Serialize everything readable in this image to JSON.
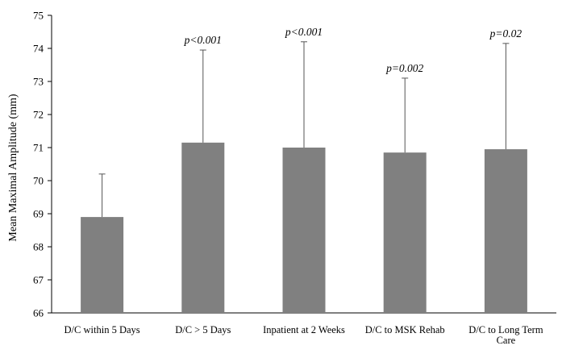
{
  "chart_data": {
    "type": "bar",
    "title": "",
    "xlabel": "",
    "ylabel": "Mean Maximal Amplitude (mm)",
    "ylim": [
      66,
      75
    ],
    "yticks": [
      "66",
      "67",
      "68",
      "69",
      "70",
      "71",
      "72",
      "73",
      "74",
      "75"
    ],
    "grid": false,
    "legend": "none",
    "bar_color": "#808080",
    "categories": [
      "D/C  within 5 Days",
      "D/C > 5 Days",
      "Inpatient at 2 Weeks",
      "D/C to MSK Rehab",
      "D/C to Long Term Care"
    ],
    "values": [
      68.9,
      71.15,
      71.0,
      70.85,
      70.95
    ],
    "error_upper": [
      70.2,
      73.95,
      74.2,
      73.1,
      74.15
    ],
    "annotations": [
      "",
      "p<0.001",
      "p<0.001",
      "p=0.002",
      "p=0.02"
    ]
  }
}
